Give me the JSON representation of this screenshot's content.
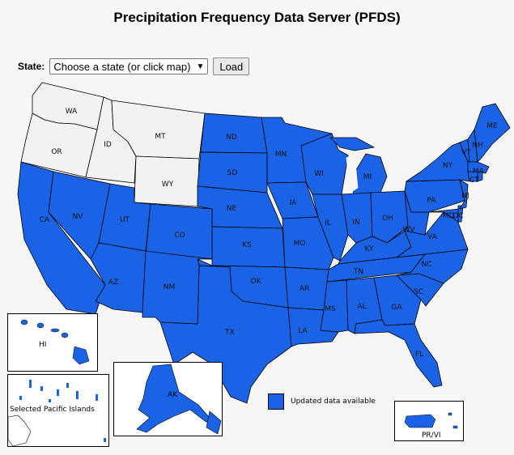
{
  "page_title": "Precipitation Frequency Data Server (PFDS)",
  "selector": {
    "label": "State:",
    "value": "Choose a state (or click map)",
    "arrow": "▼",
    "load_label": "Load"
  },
  "colors": {
    "updated": "#1a63e6",
    "not_updated": "#f2f2f2",
    "border": "#000000"
  },
  "states_updated": [
    "ND",
    "SD",
    "NE",
    "KS",
    "OK",
    "TX",
    "MN",
    "IA",
    "MO",
    "AR",
    "LA",
    "WI",
    "IL",
    "MI",
    "IN",
    "OH",
    "KY",
    "TN",
    "MS",
    "AL",
    "GA",
    "FL",
    "SC",
    "NC",
    "VA",
    "WV",
    "PA",
    "NY",
    "ME",
    "NH",
    "VT",
    "MA",
    "CT",
    "RI",
    "NJ",
    "DE",
    "MD",
    "DC",
    "CA",
    "NV",
    "UT",
    "CO",
    "AZ",
    "NM",
    "HI",
    "AK",
    "PR/VI"
  ],
  "states_not_updated": [
    "WA",
    "OR",
    "ID",
    "MT",
    "WY"
  ],
  "labels": {
    "WA": "WA",
    "OR": "OR",
    "ID": "ID",
    "MT": "MT",
    "WY": "WY",
    "CA": "CA",
    "NV": "NV",
    "UT": "UT",
    "CO": "CO",
    "AZ": "AZ",
    "NM": "NM",
    "ND": "ND",
    "SD": "SD",
    "NE": "NE",
    "KS": "KS",
    "OK": "OK",
    "TX": "TX",
    "MN": "MN",
    "IA": "IA",
    "MO": "MO",
    "AR": "AR",
    "LA": "LA",
    "WI": "WI",
    "IL": "IL",
    "MI": "MI",
    "IN": "IN",
    "OH": "OH",
    "KY": "KY",
    "TN": "TN",
    "MS": "MS",
    "AL": "AL",
    "GA": "GA",
    "FL": "FL",
    "SC": "SC",
    "NC": "NC",
    "VA": "VA",
    "WV": "WV",
    "PA": "PA",
    "NY": "NY",
    "ME": "ME",
    "NH": "NH",
    "VT": "VT",
    "MA": "MA",
    "CT": "CT",
    "NJ": "NJ",
    "MD": "MD",
    "DC": "DC"
  },
  "insets": {
    "hi": "HI",
    "pacific": "Selected Pacific Islands",
    "ak": "AK",
    "pr": "PR/VI"
  },
  "legend": {
    "text": "Updated data available"
  }
}
